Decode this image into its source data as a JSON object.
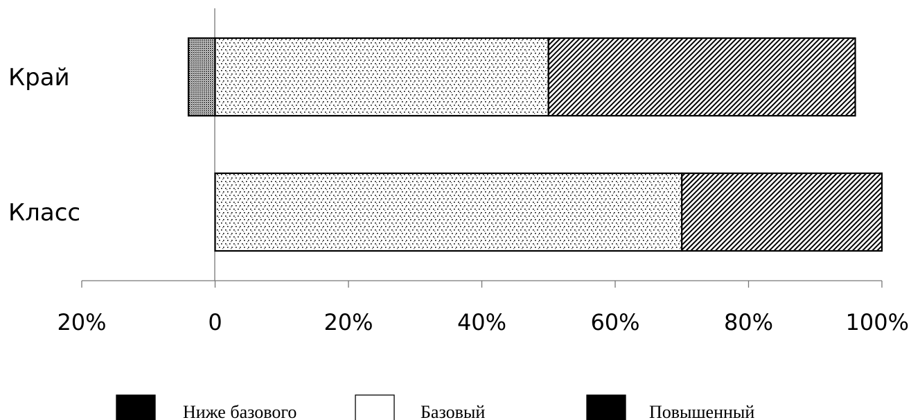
{
  "chart_data": {
    "type": "bar",
    "orientation": "horizontal",
    "stacked": true,
    "categories": [
      "Край",
      "Класс"
    ],
    "series": [
      {
        "name": "Ниже базового",
        "values": [
          -4,
          0
        ],
        "pattern": "dense-dots",
        "color": "#000000"
      },
      {
        "name": "Базовый",
        "values": [
          50,
          70
        ],
        "pattern": "sparse-dots",
        "color": "#ffffff"
      },
      {
        "name": "Повышенный",
        "values": [
          46,
          30
        ],
        "pattern": "diagonal-hatch",
        "color": "#000000"
      }
    ],
    "xlim": [
      -20,
      100
    ],
    "x_ticks": [
      {
        "value": -20,
        "label": "20%"
      },
      {
        "value": 0,
        "label": "0"
      },
      {
        "value": 20,
        "label": "20%"
      },
      {
        "value": 40,
        "label": "40%"
      },
      {
        "value": 60,
        "label": "60%"
      },
      {
        "value": 80,
        "label": "80%"
      },
      {
        "value": 100,
        "label": "100%"
      }
    ],
    "legend_position": "bottom",
    "grid": false
  }
}
